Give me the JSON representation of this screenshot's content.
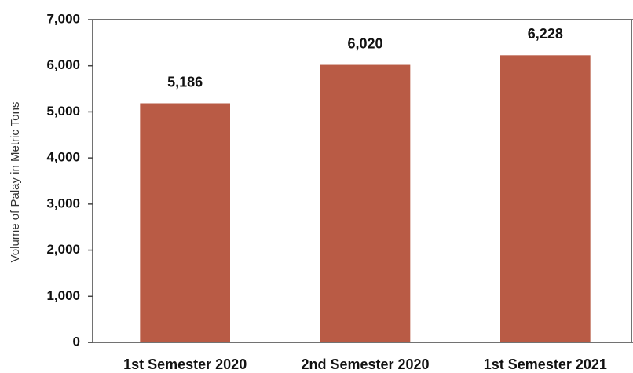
{
  "chart_data": {
    "type": "bar",
    "y_label": "Volume of Palay in Metric Tons",
    "categories": [
      "1st Semester 2020",
      "2nd Semester 2020",
      "1st Semester 2021"
    ],
    "values": [
      5186,
      6020,
      6228
    ],
    "value_labels": [
      "5,186",
      "6,020",
      "6,228"
    ],
    "color": "#b95b45",
    "ylim": [
      0,
      7000
    ],
    "yticks": [
      0,
      {
        "value": 1000,
        "label": "1,000"
      },
      {
        "value": 2000,
        "label": "2,000"
      },
      {
        "value": 3000,
        "label": "3,000"
      },
      {
        "value": 4000,
        "label": "4,000"
      },
      {
        "value": 5000,
        "label": "5,000"
      },
      {
        "value": 6000,
        "label": "6,000"
      },
      {
        "value": 7000,
        "label": "7,000"
      }
    ],
    "grid": false
  }
}
